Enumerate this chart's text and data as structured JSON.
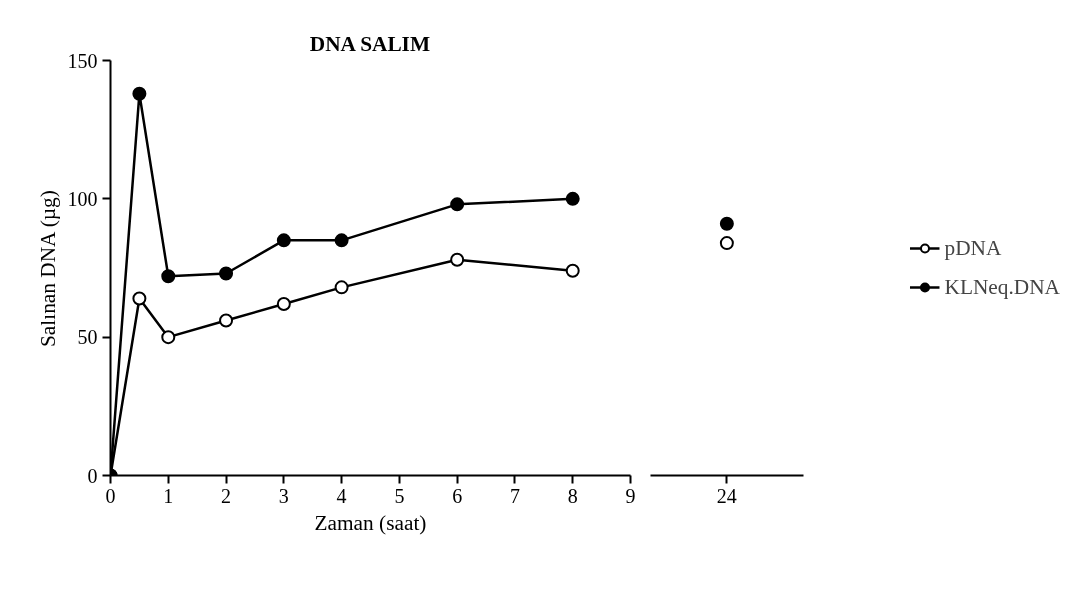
{
  "chart_data": [
    {
      "type": "line",
      "title": "DNA SALIM",
      "xlabel": "Zaman (saat)",
      "ylabel": "Salınan DNA (µg)",
      "xlim": [
        0,
        9
      ],
      "xticks": [
        0,
        1,
        2,
        3,
        4,
        5,
        6,
        7,
        8,
        9
      ],
      "ylim": [
        0,
        150
      ],
      "yticks": [
        0,
        50,
        100,
        150
      ],
      "grid": false,
      "legend": false,
      "marker": "circle",
      "line_style": "solid",
      "series": [
        {
          "color": "#000000",
          "x": [
            0,
            0.5,
            1,
            2,
            3,
            4,
            6,
            8
          ],
          "values": [
            0,
            64,
            50,
            56,
            62,
            68,
            78,
            74
          ]
        },
        {
          "color": "#000000",
          "x": [
            0,
            0.5,
            1,
            2,
            3,
            4,
            6,
            8
          ],
          "values": [
            0,
            138,
            72,
            73,
            85,
            85,
            98,
            100
          ]
        }
      ]
    },
    {
      "type": "line",
      "categories": [
        "24"
      ],
      "ylim": [
        0,
        150
      ],
      "tick_labels": "x",
      "grid": false,
      "legend": "right",
      "marker": "circle",
      "line_style": "solid",
      "series": [
        {
          "name": "pDNA",
          "color": "#000000",
          "values": [
            84
          ]
        },
        {
          "name": "KLNeq.DNA",
          "color": "#000000",
          "values": [
            91
          ]
        }
      ]
    }
  ]
}
